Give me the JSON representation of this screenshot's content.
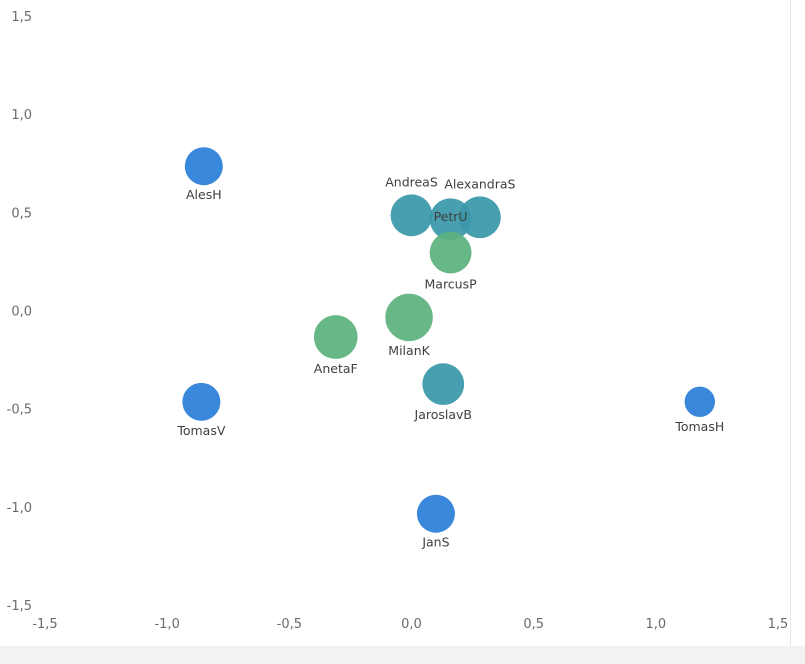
{
  "chart_data": {
    "type": "scatter",
    "title": "",
    "xlabel": "",
    "ylabel": "",
    "xlim": [
      -1.5,
      1.5
    ],
    "ylim": [
      -1.5,
      1.5
    ],
    "x_ticks": [
      "-1,5",
      "-1,0",
      "-0,5",
      "0,0",
      "0,5",
      "1,0",
      "1,5"
    ],
    "y_ticks": [
      "1,5",
      "1,0",
      "0,5",
      "0,0",
      "-0,5",
      "-1,0",
      "-1,5"
    ],
    "grid": false,
    "points": [
      {
        "label": "AlesH",
        "x": -0.85,
        "y": 0.74,
        "size": 1.0,
        "color": "#2b7fd9"
      },
      {
        "label": "TomasV",
        "x": -0.86,
        "y": -0.46,
        "size": 1.0,
        "color": "#2b7fd9"
      },
      {
        "label": "TomasH",
        "x": 1.18,
        "y": -0.46,
        "size": 0.8,
        "color": "#2b7fd9"
      },
      {
        "label": "JanS",
        "x": 0.1,
        "y": -1.03,
        "size": 1.0,
        "color": "#2b7fd9"
      },
      {
        "label": "AndreaS",
        "x": 0.0,
        "y": 0.49,
        "size": 1.1,
        "color": "#3a98aa"
      },
      {
        "label": "AlexandraS",
        "x": 0.28,
        "y": 0.48,
        "size": 1.1,
        "color": "#3a98aa"
      },
      {
        "label": "PetrU",
        "x": 0.16,
        "y": 0.47,
        "size": 1.1,
        "color": "#3a98aa"
      },
      {
        "label": "JaroslavB",
        "x": 0.13,
        "y": -0.37,
        "size": 1.1,
        "color": "#3a98aa"
      },
      {
        "label": "MarcusP",
        "x": 0.16,
        "y": 0.3,
        "size": 1.1,
        "color": "#5bb27e"
      },
      {
        "label": "MilanK",
        "x": -0.01,
        "y": -0.03,
        "size": 1.25,
        "color": "#5bb27e"
      },
      {
        "label": "AnetaF",
        "x": -0.31,
        "y": -0.13,
        "size": 1.15,
        "color": "#5bb27e"
      }
    ]
  }
}
